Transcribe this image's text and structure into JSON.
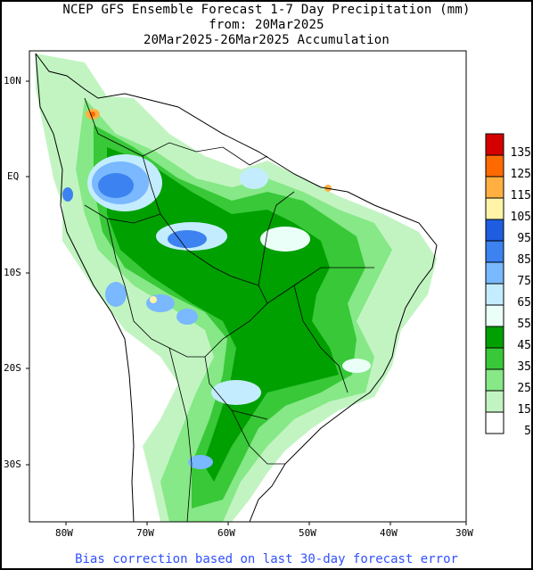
{
  "title": {
    "line1": "NCEP GFS Ensemble Forecast 1-7 Day Precipitation (mm)",
    "line2": "from: 20Mar2025",
    "line3": "20Mar2025-26Mar2025 Accumulation"
  },
  "footer": "Bias correction based on last 30-day forecast error",
  "axes": {
    "lon_ticks": [
      "80W",
      "70W",
      "60W",
      "50W",
      "40W",
      "30W"
    ],
    "lat_ticks": [
      "10N",
      "EQ",
      "10S",
      "20S",
      "30S"
    ]
  },
  "colorbar": {
    "labels": [
      "135",
      "125",
      "115",
      "105",
      "95",
      "85",
      "75",
      "65",
      "55",
      "45",
      "35",
      "25",
      "15",
      "5"
    ],
    "colors": [
      "#d40000",
      "#ff6a00",
      "#ffb040",
      "#fff3a8",
      "#1e5ce0",
      "#3c82f0",
      "#7ab8ff",
      "#c4ecff",
      "#eafff8",
      "#00a000",
      "#38c838",
      "#86e886",
      "#c2f4c2",
      "#ffffff"
    ]
  },
  "palette": {
    "land": "#ffffff",
    "coast": "#000000",
    "light_green": "#c2f4c2",
    "mid_green": "#86e886",
    "green": "#38c838",
    "dark_green": "#00a000",
    "pale_cyan": "#eafff8",
    "light_blue": "#c4ecff",
    "sky_blue": "#7ab8ff",
    "blue": "#3c82f0",
    "deep_blue": "#1e5ce0",
    "yellow": "#fff3a8",
    "orange": "#ffb040",
    "red_orange": "#ff6a00"
  }
}
